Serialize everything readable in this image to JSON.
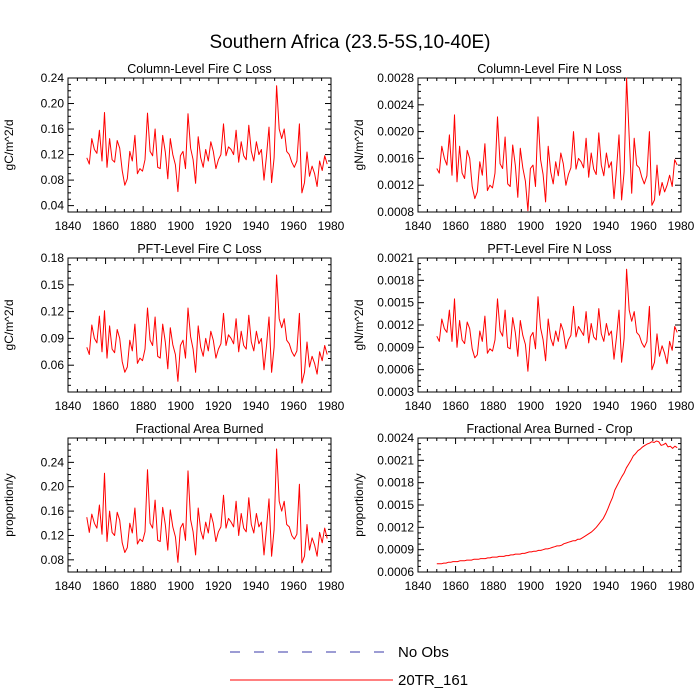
{
  "figure_title": "Southern Africa (23.5-5S,10-40E)",
  "colors": {
    "model": "#ff0000",
    "obs": "#3a3aa8",
    "axis": "#000000"
  },
  "legend": {
    "obs_label": "No Obs",
    "model_label": "20TR_161"
  },
  "chart_data": [
    {
      "type": "line",
      "title": "Column-Level Fire C Loss",
      "ylabel": "gC/m^2/d",
      "xlabel": "",
      "xlim": [
        1840,
        1980
      ],
      "ylim": [
        0.03,
        0.24
      ],
      "xticks": [
        "1840",
        "1860",
        "1880",
        "1900",
        "1920",
        "1940",
        "1960",
        "1980"
      ],
      "yticks": [
        "0.04",
        "0.08",
        "0.12",
        "0.16",
        "0.20",
        "0.24"
      ],
      "series": [
        {
          "name": "20TR_161",
          "start_year": 1850,
          "values": [
            0.115,
            0.105,
            0.145,
            0.128,
            0.122,
            0.158,
            0.11,
            0.186,
            0.1,
            0.145,
            0.112,
            0.108,
            0.142,
            0.13,
            0.095,
            0.072,
            0.082,
            0.125,
            0.11,
            0.15,
            0.09,
            0.098,
            0.094,
            0.112,
            0.185,
            0.125,
            0.118,
            0.16,
            0.1,
            0.098,
            0.15,
            0.124,
            0.082,
            0.145,
            0.12,
            0.104,
            0.062,
            0.118,
            0.125,
            0.098,
            0.184,
            0.13,
            0.112,
            0.075,
            0.148,
            0.115,
            0.1,
            0.128,
            0.11,
            0.14,
            0.125,
            0.098,
            0.112,
            0.12,
            0.168,
            0.118,
            0.132,
            0.128,
            0.12,
            0.158,
            0.108,
            0.14,
            0.118,
            0.112,
            0.166,
            0.125,
            0.11,
            0.14,
            0.12,
            0.128,
            0.08,
            0.118,
            0.163,
            0.076,
            0.115,
            0.228,
            0.16,
            0.145,
            0.16,
            0.125,
            0.12,
            0.108,
            0.1,
            0.11,
            0.168,
            0.06,
            0.076,
            0.124,
            0.086,
            0.102,
            0.09,
            0.07,
            0.11,
            0.095,
            0.118,
            0.105
          ]
        }
      ]
    },
    {
      "type": "line",
      "title": "Column-Level Fire N Loss",
      "ylabel": "gN/m^2/d",
      "xlabel": "",
      "xlim": [
        1840,
        1980
      ],
      "ylim": [
        0.0008,
        0.0028
      ],
      "xticks": [
        "1840",
        "1860",
        "1880",
        "1900",
        "1920",
        "1940",
        "1960",
        "1980"
      ],
      "yticks": [
        "0.0008",
        "0.0012",
        "0.0016",
        "0.0020",
        "0.0024",
        "0.0028"
      ],
      "series": [
        {
          "name": "20TR_161",
          "start_year": 1850,
          "values": [
            0.00145,
            0.00138,
            0.00178,
            0.0016,
            0.0015,
            0.00195,
            0.00135,
            0.00225,
            0.00125,
            0.00178,
            0.00138,
            0.0013,
            0.00172,
            0.0016,
            0.00118,
            0.001,
            0.0011,
            0.00155,
            0.00135,
            0.00182,
            0.00112,
            0.0012,
            0.00116,
            0.00138,
            0.00222,
            0.00152,
            0.00145,
            0.00192,
            0.00122,
            0.00118,
            0.0018,
            0.0015,
            0.00102,
            0.00175,
            0.00146,
            0.00126,
            0.00082,
            0.00145,
            0.0015,
            0.00118,
            0.00222,
            0.00158,
            0.00136,
            0.00095,
            0.00178,
            0.0014,
            0.00122,
            0.00155,
            0.00134,
            0.00168,
            0.00152,
            0.0012,
            0.00136,
            0.00146,
            0.002,
            0.00144,
            0.0016,
            0.00155,
            0.00146,
            0.0019,
            0.00132,
            0.00168,
            0.00144,
            0.00136,
            0.00198,
            0.0015,
            0.00134,
            0.00168,
            0.00146,
            0.00155,
            0.001,
            0.00144,
            0.00195,
            0.00098,
            0.0014,
            0.0028,
            0.00192,
            0.00108,
            0.0019,
            0.0015,
            0.00146,
            0.00132,
            0.00122,
            0.00134,
            0.002,
            0.0009,
            0.00098,
            0.0015,
            0.00105,
            0.00124,
            0.0011,
            0.0012,
            0.00135,
            0.00118,
            0.00158,
            0.0015
          ]
        }
      ]
    },
    {
      "type": "line",
      "title": "PFT-Level Fire C Loss",
      "ylabel": "gC/m^2/d",
      "xlabel": "",
      "xlim": [
        1840,
        1980
      ],
      "ylim": [
        0.03,
        0.18
      ],
      "xticks": [
        "1840",
        "1860",
        "1880",
        "1900",
        "1920",
        "1940",
        "1960",
        "1980"
      ],
      "yticks": [
        "0.06",
        "0.09",
        "0.12",
        "0.15",
        "0.18"
      ],
      "series": [
        {
          "name": "20TR_161",
          "start_year": 1850,
          "values": [
            0.08,
            0.072,
            0.105,
            0.09,
            0.085,
            0.115,
            0.075,
            0.121,
            0.068,
            0.104,
            0.078,
            0.074,
            0.1,
            0.09,
            0.064,
            0.052,
            0.058,
            0.088,
            0.076,
            0.106,
            0.062,
            0.068,
            0.065,
            0.078,
            0.124,
            0.088,
            0.082,
            0.114,
            0.07,
            0.068,
            0.106,
            0.086,
            0.056,
            0.102,
            0.083,
            0.072,
            0.042,
            0.082,
            0.088,
            0.068,
            0.124,
            0.092,
            0.078,
            0.052,
            0.104,
            0.08,
            0.07,
            0.09,
            0.076,
            0.098,
            0.088,
            0.068,
            0.078,
            0.084,
            0.118,
            0.082,
            0.094,
            0.09,
            0.084,
            0.112,
            0.075,
            0.098,
            0.082,
            0.078,
            0.116,
            0.086,
            0.076,
            0.098,
            0.084,
            0.09,
            0.055,
            0.082,
            0.114,
            0.052,
            0.08,
            0.161,
            0.112,
            0.102,
            0.112,
            0.088,
            0.084,
            0.075,
            0.07,
            0.076,
            0.118,
            0.04,
            0.052,
            0.086,
            0.058,
            0.07,
            0.062,
            0.05,
            0.075,
            0.065,
            0.082,
            0.072
          ]
        }
      ]
    },
    {
      "type": "line",
      "title": "PFT-Level Fire N Loss",
      "ylabel": "gN/m^2/d",
      "xlabel": "",
      "xlim": [
        1840,
        1980
      ],
      "ylim": [
        0.0003,
        0.0021
      ],
      "xticks": [
        "1840",
        "1860",
        "1880",
        "1900",
        "1920",
        "1940",
        "1960",
        "1980"
      ],
      "yticks": [
        "0.0003",
        "0.0006",
        "0.0009",
        "0.0012",
        "0.0015",
        "0.0018",
        "0.0021"
      ],
      "series": [
        {
          "name": "20TR_161",
          "start_year": 1850,
          "values": [
            0.00105,
            0.00098,
            0.00128,
            0.00115,
            0.0011,
            0.0014,
            0.00098,
            0.00155,
            0.0009,
            0.00126,
            0.001,
            0.00095,
            0.00124,
            0.00115,
            0.00088,
            0.00076,
            0.0008,
            0.00112,
            0.00098,
            0.00132,
            0.00082,
            0.00088,
            0.00085,
            0.001,
            0.00155,
            0.00112,
            0.00105,
            0.0014,
            0.0009,
            0.00088,
            0.0013,
            0.0011,
            0.00078,
            0.00126,
            0.00106,
            0.00094,
            0.00058,
            0.00104,
            0.0011,
            0.00088,
            0.00158,
            0.00116,
            0.001,
            0.00072,
            0.00128,
            0.00102,
            0.00092,
            0.00112,
            0.00098,
            0.00122,
            0.00112,
            0.00088,
            0.001,
            0.00106,
            0.00145,
            0.00104,
            0.00118,
            0.00112,
            0.00106,
            0.00138,
            0.00096,
            0.00122,
            0.00104,
            0.001,
            0.00142,
            0.00108,
            0.00098,
            0.00122,
            0.00106,
            0.00112,
            0.00074,
            0.00104,
            0.0014,
            0.0007,
            0.00102,
            0.00195,
            0.0014,
            0.00125,
            0.00138,
            0.0011,
            0.00106,
            0.00096,
            0.0009,
            0.00098,
            0.00145,
            0.0006,
            0.0007,
            0.00108,
            0.00078,
            0.00092,
            0.00082,
            0.00068,
            0.00098,
            0.00086,
            0.00118,
            0.0011
          ]
        }
      ]
    },
    {
      "type": "line",
      "title": "Fractional Area Burned",
      "ylabel": "proportion/y",
      "xlabel": "",
      "xlim": [
        1840,
        1980
      ],
      "ylim": [
        0.06,
        0.28
      ],
      "xticks": [
        "1840",
        "1860",
        "1880",
        "1900",
        "1920",
        "1940",
        "1960",
        "1980"
      ],
      "yticks": [
        "0.08",
        "0.12",
        "0.16",
        "0.20",
        "0.24"
      ],
      "series": [
        {
          "name": "20TR_161",
          "start_year": 1850,
          "values": [
            0.15,
            0.125,
            0.155,
            0.14,
            0.132,
            0.17,
            0.122,
            0.222,
            0.11,
            0.16,
            0.125,
            0.12,
            0.158,
            0.145,
            0.108,
            0.092,
            0.1,
            0.14,
            0.124,
            0.165,
            0.106,
            0.114,
            0.11,
            0.126,
            0.228,
            0.14,
            0.132,
            0.178,
            0.112,
            0.11,
            0.166,
            0.138,
            0.096,
            0.162,
            0.134,
            0.118,
            0.076,
            0.132,
            0.14,
            0.112,
            0.226,
            0.146,
            0.126,
            0.088,
            0.165,
            0.128,
            0.114,
            0.142,
            0.124,
            0.156,
            0.14,
            0.11,
            0.126,
            0.134,
            0.186,
            0.132,
            0.148,
            0.142,
            0.134,
            0.176,
            0.12,
            0.156,
            0.132,
            0.126,
            0.182,
            0.138,
            0.124,
            0.156,
            0.134,
            0.142,
            0.088,
            0.132,
            0.18,
            0.086,
            0.13,
            0.262,
            0.176,
            0.16,
            0.176,
            0.138,
            0.134,
            0.12,
            0.114,
            0.122,
            0.204,
            0.075,
            0.086,
            0.138,
            0.096,
            0.116,
            0.104,
            0.086,
            0.125,
            0.108,
            0.132,
            0.115
          ]
        }
      ]
    },
    {
      "type": "line",
      "title": "Fractional Area Burned - Crop",
      "ylabel": "proportion/y",
      "xlabel": "",
      "xlim": [
        1840,
        1980
      ],
      "ylim": [
        0.0006,
        0.0024
      ],
      "xticks": [
        "1840",
        "1860",
        "1880",
        "1900",
        "1920",
        "1940",
        "1960",
        "1980"
      ],
      "yticks": [
        "0.0006",
        "0.0009",
        "0.0012",
        "0.0015",
        "0.0018",
        "0.0021",
        "0.0024"
      ],
      "series": [
        {
          "name": "20TR_161",
          "start_year": 1850,
          "values": [
            0.00071,
            0.00071,
            0.00071,
            0.00072,
            0.00072,
            0.00073,
            0.00073,
            0.00074,
            0.00074,
            0.00074,
            0.00075,
            0.00075,
            0.00075,
            0.00076,
            0.00076,
            0.00076,
            0.00077,
            0.00077,
            0.00077,
            0.00078,
            0.00078,
            0.00078,
            0.00079,
            0.00079,
            0.0008,
            0.0008,
            0.0008,
            0.00081,
            0.00081,
            0.00081,
            0.00082,
            0.00082,
            0.00083,
            0.00083,
            0.00084,
            0.00084,
            0.00084,
            0.00085,
            0.00085,
            0.00086,
            0.00087,
            0.00087,
            0.00088,
            0.00088,
            0.00089,
            0.00089,
            0.0009,
            0.00091,
            0.00091,
            0.00092,
            0.00093,
            0.00094,
            0.00095,
            0.00095,
            0.00096,
            0.00098,
            0.00099,
            0.001,
            0.00101,
            0.00102,
            0.00102,
            0.00104,
            0.00104,
            0.00106,
            0.00108,
            0.0011,
            0.00112,
            0.00114,
            0.00117,
            0.0012,
            0.00124,
            0.00128,
            0.00132,
            0.00138,
            0.00145,
            0.00153,
            0.0016,
            0.0017,
            0.00176,
            0.00182,
            0.00188,
            0.00193,
            0.002,
            0.00205,
            0.0021,
            0.00216,
            0.00219,
            0.00223,
            0.00225,
            0.00228,
            0.0023,
            0.00232,
            0.00233,
            0.00235,
            0.00234,
            0.00236,
            0.00235,
            0.0023,
            0.00231,
            0.00233,
            0.00228,
            0.00229,
            0.00226,
            0.00229,
            0.00227
          ]
        }
      ]
    }
  ]
}
